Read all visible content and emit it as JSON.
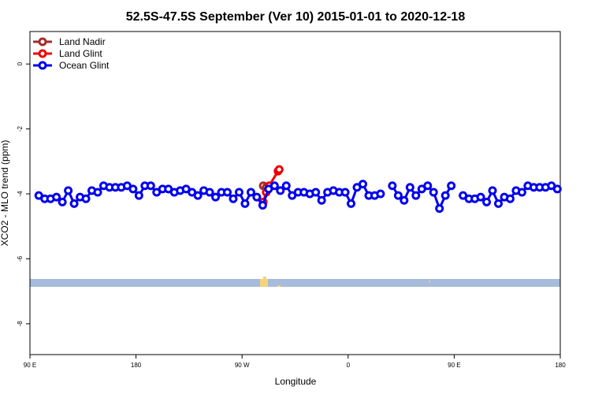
{
  "chart_data": {
    "type": "line",
    "title": "52.5S-47.5S September (Ver 10)   2015-01-01 to 2020-12-18",
    "xlabel": "Longitude",
    "ylabel": "XCO2 - MLO trend (ppm)",
    "xlim": [
      90,
      540
    ],
    "ylim": [
      -8.95,
      1.0
    ],
    "xticks": [
      {
        "value": 90,
        "label": "90 E"
      },
      {
        "value": 180,
        "label": "180"
      },
      {
        "value": 270,
        "label": "90 W"
      },
      {
        "value": 360,
        "label": "0"
      },
      {
        "value": 450,
        "label": "90 E"
      },
      {
        "value": 540,
        "label": "180"
      }
    ],
    "yticks": [
      0,
      -2,
      -4,
      -6,
      -8
    ],
    "legend": "top-left",
    "series": [
      {
        "name": "Land Nadir",
        "color": "#a52a2a",
        "x": [
          288,
          290.5
        ],
        "values": [
          -3.75,
          -3.8
        ]
      },
      {
        "name": "Land Glint",
        "color": "#ee0000",
        "x": [
          288,
          290.5,
          293,
          300.5,
          301.5
        ],
        "values": [
          -4.25,
          -3.95,
          -3.75,
          -3.3,
          -3.25
        ]
      },
      {
        "name": "Ocean Glint",
        "color": "#0000ee",
        "x": [
          97.5,
          102.5,
          107.5,
          112.5,
          117.5,
          122.5,
          127.5,
          132.5,
          137.5,
          142.5,
          147.5,
          152.5,
          157.5,
          162.5,
          167.5,
          172.5,
          177.5,
          182.5,
          187.5,
          192.5,
          197.5,
          202.5,
          207.5,
          212.5,
          217.5,
          222.5,
          227.5,
          232.5,
          237.5,
          242.5,
          247.5,
          252.5,
          257.5,
          262.5,
          267.5,
          272.5,
          277.5,
          282.5,
          287.5,
          292.5,
          297.5,
          302.5,
          307.5,
          312.5,
          317.5,
          322.5,
          327.5,
          332.5,
          337.5,
          342.5,
          347.5,
          352.5,
          357.5,
          362.5,
          367.5,
          372.5,
          377.5,
          382.5,
          387.5,
          392.5,
          397.5,
          402.5,
          407.5,
          412.5,
          417.5,
          422.5,
          427.5,
          432.5,
          437.5,
          442.5,
          447.5,
          452.5,
          457.5,
          462.5,
          467.5,
          472.5,
          477.5,
          482.5,
          487.5,
          492.5,
          497.5,
          502.5,
          507.5,
          512.5,
          517.5,
          522.5,
          527.5,
          532.5,
          537.5
        ],
        "values": [
          -4.05,
          -4.15,
          -4.15,
          -4.1,
          -4.25,
          -3.9,
          -4.3,
          -4.1,
          -4.15,
          -3.9,
          -3.95,
          -3.75,
          -3.8,
          -3.8,
          -3.8,
          -3.75,
          -3.85,
          -4.05,
          -3.75,
          -3.75,
          -3.95,
          -3.85,
          -3.85,
          -3.95,
          -3.9,
          -3.85,
          -3.95,
          -4.05,
          -3.9,
          -3.95,
          -4.1,
          -3.95,
          -3.95,
          -4.15,
          -3.95,
          -4.3,
          -3.95,
          -4.1,
          -4.35,
          -3.85,
          -3.75,
          -3.9,
          -3.75,
          -4.05,
          -3.95,
          -3.95,
          -4.0,
          -3.95,
          -4.2,
          -3.95,
          -3.9,
          -3.95,
          -3.95,
          -4.3,
          -3.8,
          -3.7,
          -4.05,
          -4.05,
          -4.0,
          null,
          -3.75,
          -4.05,
          -4.2,
          -3.8,
          -4.05,
          -3.85,
          -3.75,
          -3.95,
          -4.45,
          -4.05,
          -3.75,
          null,
          -4.05,
          -4.15,
          -4.15,
          -4.1,
          -4.25,
          -3.9,
          -4.3,
          -4.1,
          -4.15,
          -3.9,
          -3.95,
          -3.75,
          -3.8,
          -3.8,
          -3.8,
          -3.75,
          -3.85
        ]
      }
    ]
  }
}
